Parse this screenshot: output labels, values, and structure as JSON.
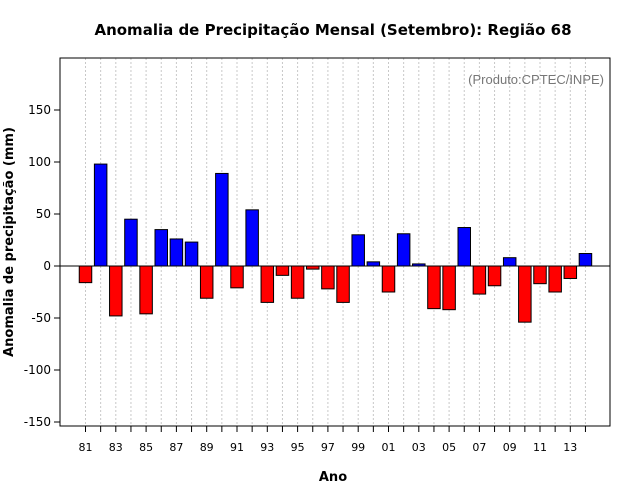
{
  "chart_data": {
    "type": "bar",
    "title": "Anomalia de Precipitação Mensal (Setembro): Região 68",
    "xlabel": "Ano",
    "ylabel": "Anomalia de precipitação (mm)",
    "annotation": "(Produto:CPTEC/INPE)",
    "ylim": [
      -155,
      195
    ],
    "yticks": [
      -150,
      -100,
      -50,
      0,
      50,
      100,
      150
    ],
    "ytick_labels": [
      "-150",
      "-100",
      "-50",
      "0",
      "50",
      "100",
      "150"
    ],
    "categories": [
      "81",
      "82",
      "83",
      "84",
      "85",
      "86",
      "87",
      "88",
      "89",
      "90",
      "91",
      "92",
      "93",
      "94",
      "95",
      "96",
      "97",
      "98",
      "99",
      "00",
      "01",
      "02",
      "03",
      "04",
      "05",
      "06",
      "07",
      "08",
      "09",
      "10",
      "11",
      "12",
      "13",
      "14"
    ],
    "xtick_labels": [
      "81",
      "83",
      "85",
      "87",
      "89",
      "91",
      "93",
      "95",
      "97",
      "99",
      "01",
      "03",
      "05",
      "07",
      "09",
      "11",
      "13"
    ],
    "values": [
      -16,
      98,
      -48,
      45,
      -46,
      35,
      26,
      23,
      -31,
      89,
      -21,
      54,
      -35,
      -9,
      -31,
      -3,
      -22,
      -35,
      30,
      4,
      -25,
      31,
      2,
      -41,
      -42,
      37,
      -27,
      -19,
      8,
      -54,
      -17,
      -25,
      -12,
      12
    ],
    "positive_color": "#0000ff",
    "negative_color": "#ff0000",
    "grid": true
  }
}
